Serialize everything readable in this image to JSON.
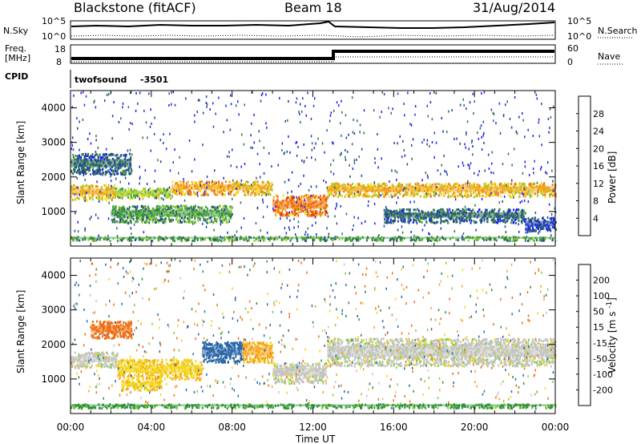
{
  "header": {
    "station": "Blackstone (fitACF)",
    "beam": "Beam 18",
    "date": "31/Aug/2014"
  },
  "noise_panel": {
    "left_label": "N.Sky",
    "right_label": "N.Search",
    "left_ticks": [
      "10^5",
      "10^0"
    ],
    "right_ticks": [
      "10^5",
      "10^0"
    ]
  },
  "freq_panel": {
    "left_label_line1": "Freq.",
    "left_label_line2": "[MHz]",
    "right_label": "Nave",
    "left_ticks": [
      "18",
      "8"
    ],
    "right_ticks": [
      "60",
      "0"
    ]
  },
  "cpid_panel": {
    "label": "CPID",
    "program": "twofsound",
    "id": "-3501"
  },
  "chart_data": [
    {
      "type": "heatmap",
      "title": "",
      "xlabel": "Time UT",
      "ylabel": "Slant Range [km]",
      "xlim": [
        0,
        24
      ],
      "ylim": [
        0,
        4500
      ],
      "x_ticks": [
        "00:00",
        "04:00",
        "08:00",
        "12:00",
        "16:00",
        "20:00",
        "00:00"
      ],
      "y_ticks": [
        1000,
        2000,
        3000,
        4000
      ],
      "colorbar": {
        "label": "Power [dB]",
        "ticks": [
          4,
          8,
          12,
          16,
          20,
          24,
          28
        ],
        "colors": [
          "#1c1cff",
          "#1e3fa6",
          "#2f6e55",
          "#3f9f3c",
          "#8fd12e",
          "#f2e21c",
          "#f2a51c",
          "#f07512",
          "#ea3a0e",
          "#e10d0d"
        ]
      },
      "bands": [
        {
          "t_start": 0.0,
          "t_end": 2.2,
          "range_lo": 1350,
          "range_hi": 1800,
          "value": 20
        },
        {
          "t_start": 2.2,
          "t_end": 5.0,
          "range_lo": 1400,
          "range_hi": 1700,
          "value": 16
        },
        {
          "t_start": 5.0,
          "t_end": 8.0,
          "range_lo": 1500,
          "range_hi": 1900,
          "value": 22
        },
        {
          "t_start": 8.0,
          "t_end": 10.0,
          "range_lo": 1500,
          "range_hi": 1900,
          "value": 20
        },
        {
          "t_start": 10.0,
          "t_end": 12.7,
          "range_lo": 900,
          "range_hi": 1500,
          "value": 24
        },
        {
          "t_start": 12.7,
          "t_end": 24.0,
          "range_lo": 1450,
          "range_hi": 1850,
          "value": 20
        },
        {
          "t_start": 2.0,
          "t_end": 8.0,
          "range_lo": 700,
          "range_hi": 1200,
          "value": 12
        },
        {
          "t_start": 0.0,
          "t_end": 3.0,
          "range_lo": 2100,
          "range_hi": 2700,
          "value": 8
        },
        {
          "t_start": 15.5,
          "t_end": 22.5,
          "range_lo": 700,
          "range_hi": 1100,
          "value": 8
        },
        {
          "t_start": 22.5,
          "t_end": 24.0,
          "range_lo": 450,
          "range_hi": 850,
          "value": 6
        },
        {
          "t_start": 0.0,
          "t_end": 24.0,
          "range_lo": 180,
          "range_hi": 300,
          "value": 12
        }
      ]
    },
    {
      "type": "heatmap",
      "title": "",
      "xlabel": "Time UT",
      "ylabel": "Slant Range [km]",
      "xlim": [
        0,
        24
      ],
      "ylim": [
        0,
        4500
      ],
      "x_ticks": [
        "00:00",
        "04:00",
        "08:00",
        "12:00",
        "16:00",
        "20:00",
        "00:00"
      ],
      "y_ticks": [
        1000,
        2000,
        3000,
        4000
      ],
      "colorbar": {
        "label": "Velocity [m s^-1]",
        "ticks": [
          200,
          100,
          50,
          15,
          -15,
          -50,
          -100,
          -200
        ],
        "colors": [
          "#1f3ec2",
          "#2a66a8",
          "#2f8f3a",
          "#7fd13a",
          "#c4c4c4",
          "#f3d41a",
          "#f5a21a",
          "#f06d12",
          "#e5100d"
        ]
      },
      "bands": [
        {
          "t_start": 0.0,
          "t_end": 2.3,
          "range_lo": 1350,
          "range_hi": 1800,
          "value": 0
        },
        {
          "t_start": 2.3,
          "t_end": 6.5,
          "range_lo": 1000,
          "range_hi": 1600,
          "value": -40
        },
        {
          "t_start": 2.5,
          "t_end": 4.5,
          "range_lo": 700,
          "range_hi": 1000,
          "value": -40
        },
        {
          "t_start": 6.5,
          "t_end": 8.5,
          "range_lo": 1500,
          "range_hi": 2100,
          "value": 120
        },
        {
          "t_start": 8.5,
          "t_end": 10.0,
          "range_lo": 1500,
          "range_hi": 2100,
          "value": -60
        },
        {
          "t_start": 10.0,
          "t_end": 12.7,
          "range_lo": 900,
          "range_hi": 1500,
          "value": 0
        },
        {
          "t_start": 12.7,
          "t_end": 24.0,
          "range_lo": 1400,
          "range_hi": 2200,
          "value": 0
        },
        {
          "t_start": 1.0,
          "t_end": 3.0,
          "range_lo": 2200,
          "range_hi": 2700,
          "value": -150
        },
        {
          "t_start": 0.0,
          "t_end": 24.0,
          "range_lo": 180,
          "range_hi": 300,
          "value": 60
        }
      ]
    }
  ]
}
